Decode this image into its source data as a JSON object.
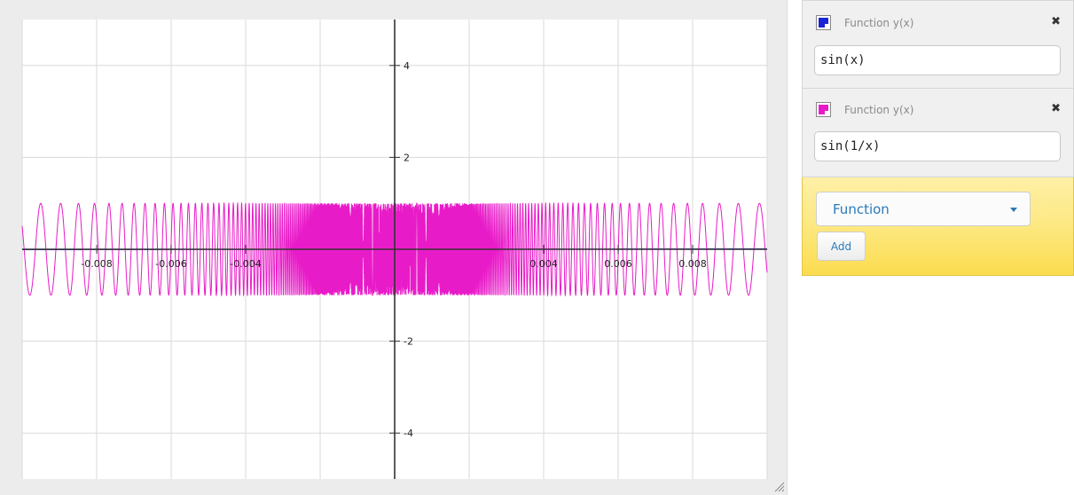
{
  "graph": {
    "x_range": [
      -0.01,
      0.01
    ],
    "y_range": [
      -5,
      5
    ],
    "x_tick_labels": [
      "-0.008",
      "-0.006",
      "-0.004",
      "0.004",
      "0.006",
      "0.008"
    ],
    "x_tick_values": [
      -0.008,
      -0.006,
      -0.004,
      0.004,
      0.006,
      0.008
    ],
    "y_tick_labels": [
      "4",
      "2",
      "-2",
      "-4"
    ],
    "y_tick_values": [
      4,
      2,
      -2,
      -4
    ],
    "grid": true,
    "grid_step_x": 0.002,
    "grid_step_y": 2,
    "colors": {
      "background": "#ffffff",
      "grid": "#dadada",
      "axis": "#333333"
    }
  },
  "functions": [
    {
      "title": "Function y(x)",
      "expression": "sin(x)",
      "color": "#1a24d6"
    },
    {
      "title": "Function y(x)",
      "expression": "sin(1/x)",
      "color": "#e81bc8"
    }
  ],
  "add_panel": {
    "type_selected": "Function",
    "add_label": "Add"
  }
}
